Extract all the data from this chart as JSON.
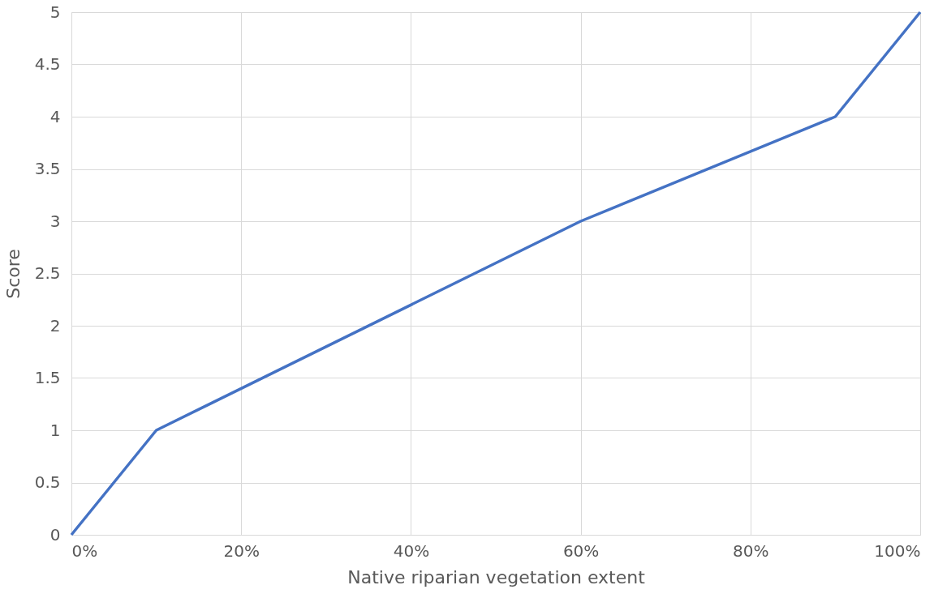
{
  "chart_data": {
    "type": "line",
    "xlabel": "Native riparian vegetation extent",
    "ylabel": "Score",
    "x": [
      0,
      10,
      60,
      90,
      100
    ],
    "series": [
      {
        "color": "#4472c4",
        "values": [
          0,
          1,
          3,
          4,
          5
        ]
      }
    ],
    "xlim": [
      0,
      100
    ],
    "xticks": [
      {
        "value": 0,
        "label": "0%"
      },
      {
        "value": 20,
        "label": "20%"
      },
      {
        "value": 40,
        "label": "40%"
      },
      {
        "value": 60,
        "label": "60%"
      },
      {
        "value": 80,
        "label": "80%"
      },
      {
        "value": 100,
        "label": "100%"
      }
    ],
    "ylim": [
      0,
      5
    ],
    "yticks": [
      0,
      0.5,
      1,
      1.5,
      2,
      2.5,
      3,
      3.5,
      4,
      4.5,
      5
    ],
    "grid": true,
    "marker": "none",
    "line_style": "solid"
  }
}
